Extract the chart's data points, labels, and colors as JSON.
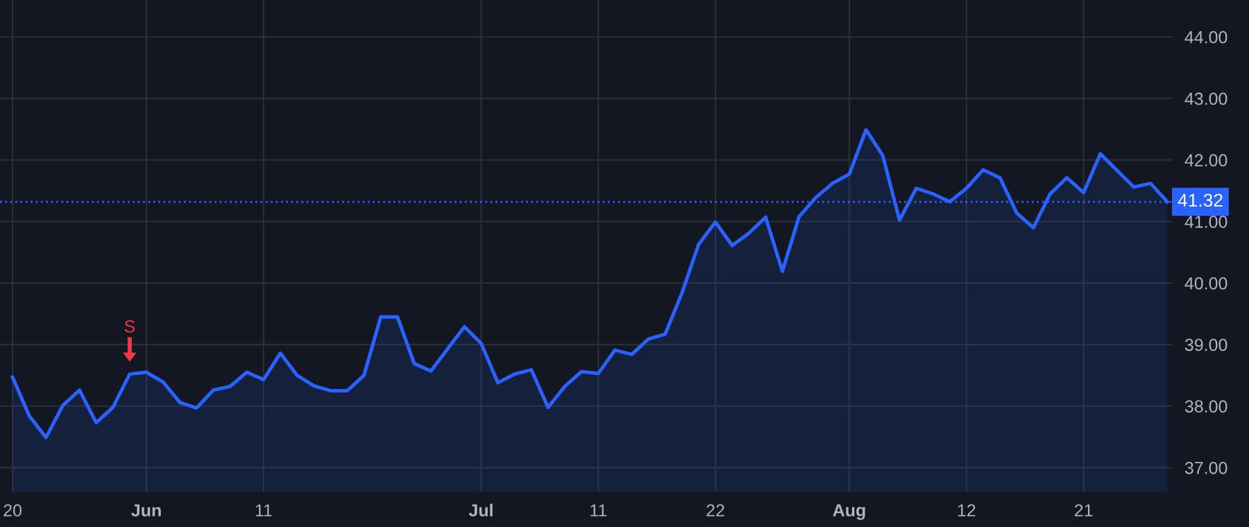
{
  "chart_data": {
    "type": "area",
    "categories": [
      "20",
      null,
      null,
      null,
      null,
      null,
      null,
      null,
      "Jun",
      null,
      null,
      null,
      null,
      null,
      null,
      "11",
      null,
      null,
      null,
      null,
      null,
      null,
      null,
      null,
      null,
      null,
      null,
      null,
      "Jul",
      null,
      null,
      null,
      null,
      null,
      null,
      "11",
      null,
      null,
      null,
      null,
      null,
      null,
      "22",
      null,
      null,
      null,
      null,
      null,
      null,
      null,
      "Aug",
      null,
      null,
      null,
      null,
      null,
      null,
      "12",
      null,
      null,
      null,
      null,
      null,
      null,
      "21",
      null,
      null,
      null,
      null,
      null
    ],
    "series": [
      {
        "color": "#2962ff",
        "values": [
          38.47,
          37.84,
          37.49,
          38.01,
          38.26,
          37.73,
          37.98,
          38.52,
          38.55,
          38.39,
          38.06,
          37.97,
          38.26,
          38.32,
          38.55,
          38.43,
          38.86,
          38.5,
          38.33,
          38.25,
          38.25,
          38.5,
          39.45,
          39.45,
          38.69,
          38.57,
          38.93,
          39.29,
          39.02,
          38.38,
          38.52,
          38.59,
          37.98,
          38.32,
          38.56,
          38.53,
          38.91,
          38.84,
          39.09,
          39.17,
          39.84,
          40.63,
          40.99,
          40.61,
          40.81,
          41.07,
          40.19,
          41.08,
          41.39,
          41.62,
          41.77,
          42.49,
          42.07,
          41.02,
          41.54,
          41.45,
          41.32,
          41.54,
          41.84,
          41.71,
          41.14,
          40.9,
          41.45,
          41.71,
          41.47,
          42.1,
          41.83,
          41.56,
          41.62,
          41.32
        ]
      }
    ],
    "ylim": [
      36.6,
      44.6
    ],
    "yticks": [
      {
        "value": 37,
        "label": "37.00"
      },
      {
        "value": 38,
        "label": "38.00"
      },
      {
        "value": 39,
        "label": "39.00"
      },
      {
        "value": 40,
        "label": "40.00"
      },
      {
        "value": 41,
        "label": "41.00"
      },
      {
        "value": 42,
        "label": "42.00"
      },
      {
        "value": 43,
        "label": "43.00"
      },
      {
        "value": 44,
        "label": "44.00"
      }
    ],
    "ref_lines": [
      {
        "axis": "y",
        "value": 41.32,
        "label": "41.32",
        "color": "#2962ff",
        "line_style": "dotted"
      }
    ],
    "annotations": [
      {
        "text": "S",
        "y": 38.52
      }
    ],
    "grid": true
  }
}
